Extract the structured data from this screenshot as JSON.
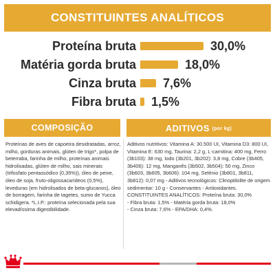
{
  "header": {
    "title": "CONSTITUINTES ANALÍTICOS"
  },
  "analysis": {
    "rows": [
      {
        "label": "Proteína bruta",
        "value": "30,0%",
        "percent": 30.0
      },
      {
        "label": "Matéria gorda bruta",
        "value": "18,0%",
        "percent": 18.0
      },
      {
        "label": "Cinza bruta",
        "value": "7,6%",
        "percent": 7.6
      },
      {
        "label": "Fibra bruta",
        "value": "1,5%",
        "percent": 1.5
      }
    ]
  },
  "composition": {
    "title": "COMPOSIÇÃO",
    "text": "Proteínas de aves de capoeira desidratadas, arroz, milho, gorduras animais, glúten de trigo*, polpa de beterraba, farinha de milho, proteínas animais hidrolisadas, glúten de milho, sais minerais (trifosfato pentassódico (0,35%)), óleo de peixe, óleo de soja, fruto-oligossacarídeos (0,5%), leveduras (em hidrolisados de beta-glucanos), óleo de borragem, farinha de tagetes, sumo de Yucca schidigera. *L.I.P.: proteína selecionada pela sua elevadíssima digestibilidade."
  },
  "additives": {
    "title": "ADITIVOS",
    "unit": "(por kg)",
    "text": "Aditivos nutritivos: Vitamina A: 30.500 UI, Vitamina D3: 800 UI, Vitamina E: 630 mg, Taurina: 2,2 g, L-carnitina: 400 mg, Ferro (3b103): 38 mg, Iodo (3b201, 3b202): 3,8 mg, Cobre (3b405, 3b406): 12 mg, Manganês (3b502, 3b504): 50 mg, Zinco (3b603, 3b605, 3b606): 104 mg, Selénio (3b801, 3b811, 3b812): 0,07 mg - Aditivos tecnológicos: Clinoptilolite de origem sedimentar: 10 g - Conservantes - Antioxidantes.",
    "lines": [
      "CONSTITUINTES ANALÍTICOS: Proteína bruta: 30,0%",
      "- Fibra bruta: 1,5% - Matéria gorda bruta: 18,0%",
      "- Cinza bruta: 7,6% - EPA/DHA: 0,4%."
    ]
  },
  "colors": {
    "accent": "#e6a932",
    "brand_red": "#e2001a"
  },
  "icons": {
    "logo": "crown-icon"
  }
}
